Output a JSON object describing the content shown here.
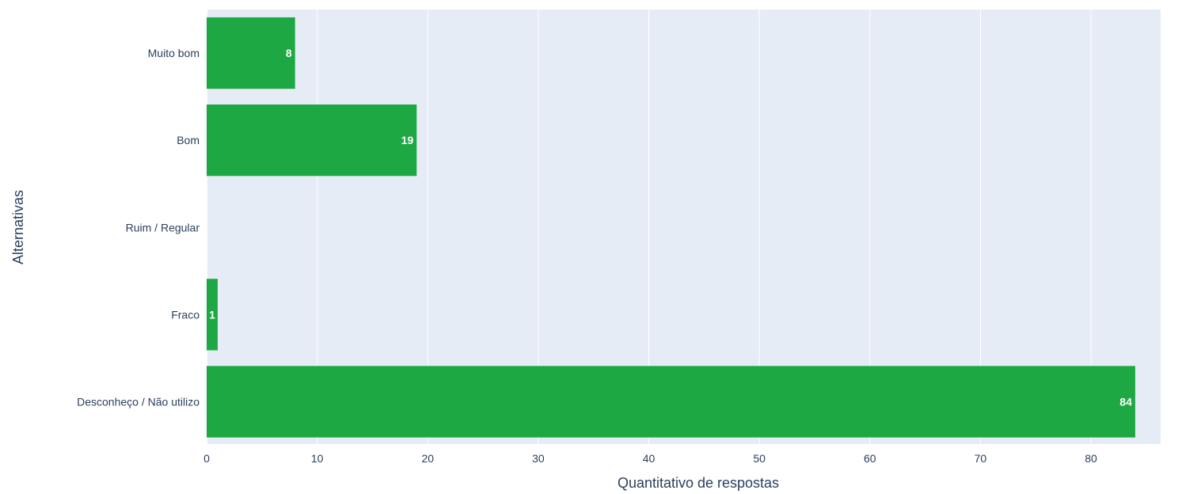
{
  "chart_data": {
    "type": "bar",
    "orientation": "horizontal",
    "categories": [
      "Muito bom",
      "Bom",
      "Ruim / Regular",
      "Fraco",
      "Desconheço / Não utilizo"
    ],
    "values": [
      8,
      19,
      0,
      1,
      84
    ],
    "data_labels": [
      "8",
      "19",
      "",
      "1",
      "84"
    ],
    "xlabel": "Quantitativo de respostas",
    "ylabel": "Alternativas",
    "xlim": [
      0,
      86.3
    ],
    "xticks": [
      0,
      10,
      20,
      30,
      40,
      50,
      60,
      70,
      80
    ],
    "xtick_labels": [
      "0",
      "10",
      "20",
      "30",
      "40",
      "50",
      "60",
      "70",
      "80"
    ],
    "grid": true,
    "colors": {
      "bar": "#1ea843",
      "plot_background": "#e5ecf6",
      "text": "#2a3f5f"
    }
  }
}
